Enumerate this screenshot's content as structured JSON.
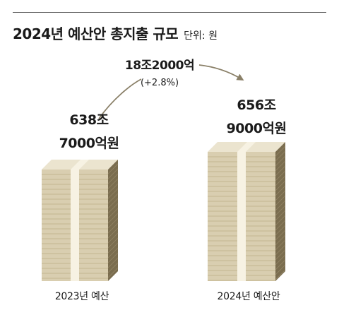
{
  "header": {
    "title": "2024년 예산안 총지출 규모",
    "unit": "단위: 원"
  },
  "chart_data": {
    "type": "bar",
    "categories": [
      "2023년 예산",
      "2024년 예산안"
    ],
    "values": [
      638.7,
      656.9
    ],
    "value_labels": [
      [
        "638조",
        "7000억원"
      ],
      [
        "656조",
        "9000억원"
      ]
    ],
    "ylabel": "",
    "change": {
      "label": "18조2000억",
      "percent": "(+2.8%)"
    },
    "colors": {
      "bar_front": "#d9ceb0",
      "bar_top": "#ebe4cf",
      "bar_side": "#7a6d4f",
      "bar_lines": "#c2b591",
      "band": "#f7f2e3",
      "arrow": "#8a8068"
    }
  }
}
